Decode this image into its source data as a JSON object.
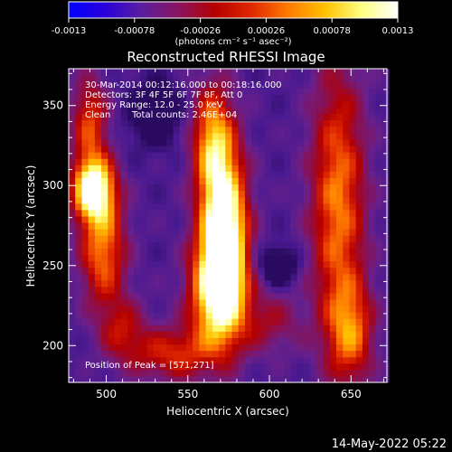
{
  "colorbar": {
    "tick_labels": [
      "-0.0013",
      "-0.00078",
      "-0.00026",
      "0.00026",
      "0.00078",
      "0.0013"
    ],
    "tick_values": [
      -0.0013,
      -0.00078,
      -0.00026,
      0.00026,
      0.00078,
      0.0013
    ],
    "range": [
      -0.0013,
      0.0013
    ],
    "units_label": "(photons cm⁻² s⁻¹ asec⁻²)",
    "colors": [
      "#0000ff",
      "#2a00d8",
      "#5a1fa0",
      "#8a1460",
      "#b40000",
      "#e02800",
      "#ff7a00",
      "#ffc000",
      "#ffff80",
      "#ffffff"
    ]
  },
  "chart_data": {
    "type": "heatmap",
    "title": "Reconstructed RHESSI Image",
    "xlabel": "Heliocentric X (arcsec)",
    "ylabel": "Heliocentric Y (arcsec)",
    "xlim": [
      477,
      672
    ],
    "ylim": [
      177,
      373
    ],
    "x_ticks": [
      500,
      550,
      600,
      650
    ],
    "y_ticks": [
      200,
      250,
      300,
      350
    ],
    "annotations": {
      "time_range": "30-Mar-2014 00:12:16.000 to 00:18:16.000",
      "detectors": "Detectors: 3F 4F 5F 6F 7F 8F, Att 0",
      "energy": "Energy Range: 12.0 - 25.0 keV",
      "method": "Clean",
      "counts": "Total counts: 2.46E+04",
      "peak": "Position of Peak = [571,271]"
    },
    "peak": [
      571,
      271
    ],
    "sources": [
      {
        "x": 572,
        "y": 272,
        "sx": 10,
        "sy": 35,
        "amp": 1.0
      },
      {
        "x": 568,
        "y": 232,
        "sx": 12,
        "sy": 25,
        "amp": 0.7
      },
      {
        "x": 565,
        "y": 330,
        "sx": 9,
        "sy": 25,
        "amp": 0.55
      },
      {
        "x": 492,
        "y": 298,
        "sx": 9,
        "sy": 14,
        "amp": 0.9
      },
      {
        "x": 498,
        "y": 260,
        "sx": 10,
        "sy": 25,
        "amp": 0.55
      },
      {
        "x": 490,
        "y": 340,
        "sx": 8,
        "sy": 20,
        "amp": 0.45
      },
      {
        "x": 642,
        "y": 290,
        "sx": 12,
        "sy": 60,
        "amp": 0.55
      },
      {
        "x": 650,
        "y": 208,
        "sx": 10,
        "sy": 22,
        "amp": 0.45
      },
      {
        "x": 540,
        "y": 195,
        "sx": 18,
        "sy": 12,
        "amp": 0.4
      },
      {
        "x": 600,
        "y": 215,
        "sx": 14,
        "sy": 14,
        "amp": 0.25
      },
      {
        "x": 510,
        "y": 210,
        "sx": 10,
        "sy": 14,
        "amp": 0.3
      },
      {
        "x": 605,
        "y": 250,
        "sx": 8,
        "sy": 8,
        "amp": -0.35
      },
      {
        "x": 530,
        "y": 345,
        "sx": 12,
        "sy": 14,
        "amp": -0.25
      }
    ]
  },
  "footer": {
    "timestamp": "14-May-2022 05:22"
  }
}
